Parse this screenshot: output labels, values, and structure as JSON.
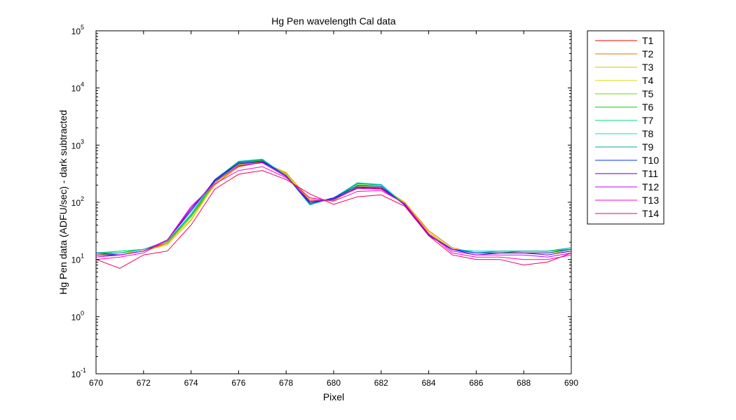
{
  "chart_data": {
    "type": "line",
    "title": "Hg Pen wavelength Cal data",
    "xlabel": "Pixel",
    "ylabel": "Hg Pen data (ADFU/sec) - dark subtracted",
    "xlim": [
      670,
      690
    ],
    "ylim": [
      0.1,
      100000
    ],
    "yscale": "log",
    "grid": false,
    "legend_position": "outside-right",
    "x_ticks": [
      "670",
      "672",
      "674",
      "676",
      "678",
      "680",
      "682",
      "684",
      "686",
      "688",
      "690"
    ],
    "y_tick_base": "10",
    "y_tick_exponents": [
      "-1",
      "0",
      "1",
      "2",
      "3",
      "4",
      "5"
    ],
    "x": [
      670,
      671,
      672,
      673,
      674,
      675,
      676,
      677,
      678,
      679,
      680,
      681,
      682,
      683,
      684,
      685,
      686,
      687,
      688,
      689,
      690
    ],
    "series": [
      {
        "name": "T1",
        "color": "#ff0000",
        "values": [
          11,
          12,
          14,
          20,
          60,
          210,
          420,
          500,
          320,
          105,
          110,
          180,
          175,
          95,
          30,
          15,
          13,
          13,
          13,
          13,
          14
        ]
      },
      {
        "name": "T2",
        "color": "#e67300",
        "values": [
          12,
          12,
          14,
          19,
          55,
          200,
          430,
          510,
          330,
          110,
          108,
          185,
          180,
          100,
          32,
          16,
          13,
          13,
          13,
          13,
          14
        ]
      },
      {
        "name": "T3",
        "color": "#e6b800",
        "values": [
          12,
          13,
          14,
          18,
          50,
          205,
          450,
          520,
          320,
          115,
          105,
          190,
          185,
          100,
          30,
          15,
          13,
          13,
          13,
          13,
          14
        ]
      },
      {
        "name": "T4",
        "color": "#d9d900",
        "values": [
          12,
          13,
          14,
          18,
          48,
          210,
          460,
          530,
          310,
          110,
          105,
          190,
          185,
          98,
          30,
          15,
          13,
          13,
          13,
          13,
          14
        ]
      },
      {
        "name": "T5",
        "color": "#66dd00",
        "values": [
          13,
          13,
          15,
          20,
          55,
          220,
          480,
          540,
          300,
          100,
          110,
          200,
          200,
          95,
          28,
          15,
          13,
          13,
          14,
          14,
          15
        ]
      },
      {
        "name": "T6",
        "color": "#00cc00",
        "values": [
          13,
          14,
          15,
          21,
          58,
          230,
          500,
          550,
          290,
          95,
          115,
          210,
          205,
          90,
          27,
          15,
          13,
          13,
          14,
          14,
          15
        ]
      },
      {
        "name": "T7",
        "color": "#00dd77",
        "values": [
          13,
          14,
          15,
          21,
          60,
          240,
          510,
          560,
          290,
          95,
          115,
          215,
          205,
          90,
          27,
          15,
          14,
          14,
          14,
          14,
          16
        ]
      },
      {
        "name": "T8",
        "color": "#00dddd",
        "values": [
          13,
          13,
          15,
          21,
          60,
          245,
          520,
          570,
          290,
          92,
          118,
          220,
          205,
          88,
          26,
          15,
          14,
          14,
          14,
          14,
          16
        ]
      },
      {
        "name": "T9",
        "color": "#00aaaa",
        "values": [
          13,
          13,
          15,
          21,
          62,
          250,
          520,
          560,
          290,
          90,
          120,
          215,
          200,
          88,
          26,
          15,
          13,
          14,
          14,
          14,
          16
        ]
      },
      {
        "name": "T10",
        "color": "#0033ff",
        "values": [
          13,
          12,
          14,
          22,
          70,
          250,
          490,
          530,
          290,
          95,
          120,
          195,
          190,
          88,
          26,
          15,
          13,
          13,
          13,
          13,
          15
        ]
      },
      {
        "name": "T11",
        "color": "#5500cc",
        "values": [
          12,
          12,
          14,
          22,
          75,
          240,
          470,
          510,
          290,
          100,
          115,
          185,
          180,
          90,
          27,
          15,
          12,
          13,
          13,
          12,
          14
        ]
      },
      {
        "name": "T12",
        "color": "#bb00ff",
        "values": [
          11,
          12,
          14,
          22,
          80,
          230,
          440,
          490,
          280,
          105,
          112,
          175,
          170,
          92,
          28,
          14,
          12,
          12,
          12,
          11,
          13
        ]
      },
      {
        "name": "T13",
        "color": "#ff00cc",
        "values": [
          10,
          11,
          13,
          22,
          85,
          210,
          360,
          420,
          270,
          120,
          105,
          155,
          160,
          95,
          28,
          13,
          11,
          11,
          10,
          10,
          12
        ]
      },
      {
        "name": "T14",
        "color": "#ee0055",
        "values": [
          10,
          7,
          12,
          14,
          40,
          170,
          310,
          360,
          250,
          140,
          92,
          125,
          135,
          85,
          26,
          12,
          10,
          10,
          8,
          9,
          13
        ]
      }
    ]
  }
}
